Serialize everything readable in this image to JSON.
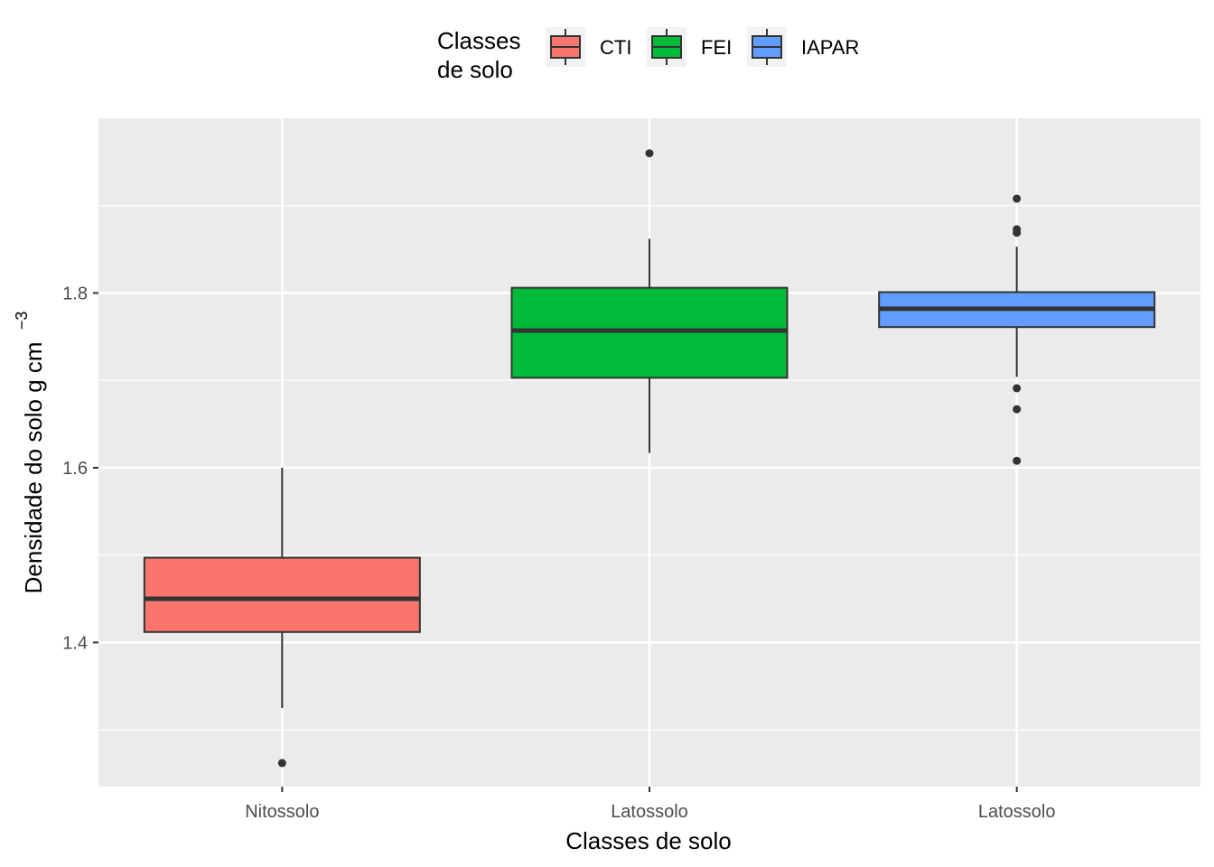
{
  "chart_data": {
    "type": "box",
    "xlabel": "Classes de solo",
    "ylabel": "Densidade do solo g cm",
    "ylabel_superscript": "−3",
    "ylim": [
      1.235,
      2.0
    ],
    "yticks": [
      1.4,
      1.6,
      1.8
    ],
    "ytick_labels": [
      "1.4",
      "1.6",
      "1.8"
    ],
    "legend": {
      "title_lines": [
        "Classes",
        "de solo"
      ],
      "position": "top"
    },
    "categories": [
      "Nitossolo",
      "Latossolo",
      "Latossolo"
    ],
    "series": [
      {
        "name": "CTI",
        "color": "#F8766D",
        "category": "Nitossolo",
        "q1": 1.412,
        "median": 1.45,
        "q3": 1.497,
        "whisker_low": 1.325,
        "whisker_high": 1.6,
        "outliers": [
          1.262
        ]
      },
      {
        "name": "FEI",
        "color": "#00BA38",
        "category": "Latossolo",
        "q1": 1.703,
        "median": 1.757,
        "q3": 1.806,
        "whisker_low": 1.617,
        "whisker_high": 1.862,
        "outliers": [
          1.96
        ]
      },
      {
        "name": "IAPAR",
        "color": "#619CFF",
        "category": "Latossolo",
        "q1": 1.761,
        "median": 1.782,
        "q3": 1.801,
        "whisker_low": 1.704,
        "whisker_high": 1.853,
        "outliers": [
          1.908,
          1.873,
          1.869,
          1.691,
          1.667,
          1.608
        ]
      }
    ]
  }
}
